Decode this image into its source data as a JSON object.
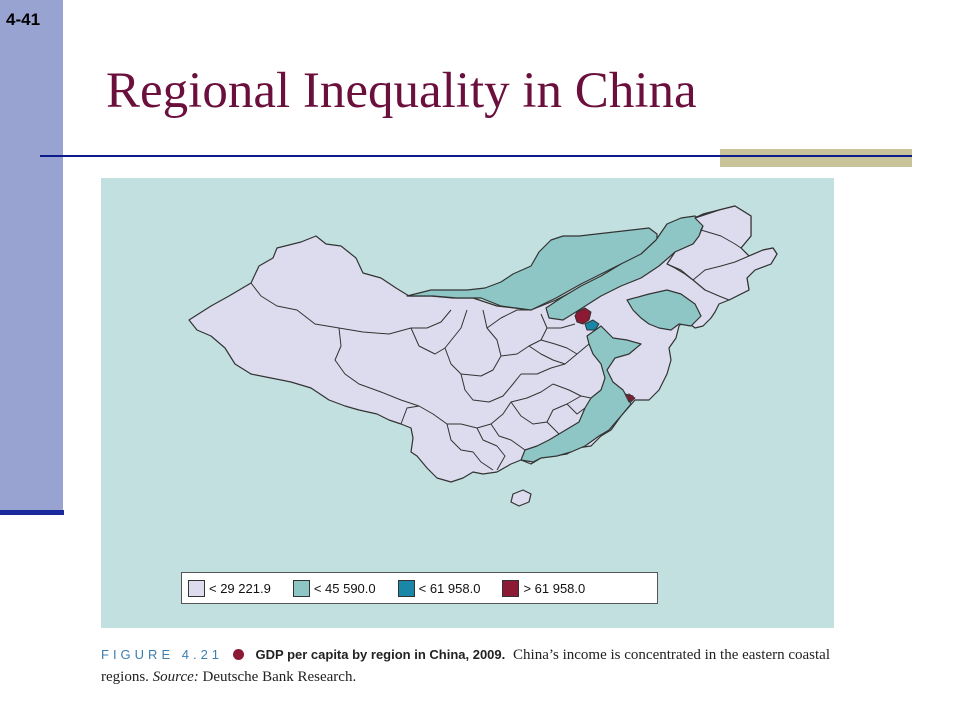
{
  "slide_number": "4-41",
  "title": "Regional Inequality in China",
  "legend": [
    {
      "label": "< 29 221.9",
      "color": "#dcdcee"
    },
    {
      "label": "< 45 590.0",
      "color": "#8ec6c6"
    },
    {
      "label": "< 61 958.0",
      "color": "#1a86a8"
    },
    {
      "label": "> 61 958.0",
      "color": "#8c1a34"
    }
  ],
  "caption": {
    "figure_label": "FIGURE 4.21",
    "bold_text": "GDP per capita by region in China, 2009.",
    "text": "China’s income is concentrated in the eastern coastal regions.",
    "source_label": "Source:",
    "source_text": "Deutsche Bank Research."
  },
  "colors": {
    "title": "#6b0f3c",
    "sidebar": "#98a3d2",
    "map_background": "#c3e0e0",
    "low_region": "#dcdcee",
    "mid_region": "#8ec6c6",
    "high_region": "#1a86a8",
    "top_region": "#8c1a34"
  }
}
